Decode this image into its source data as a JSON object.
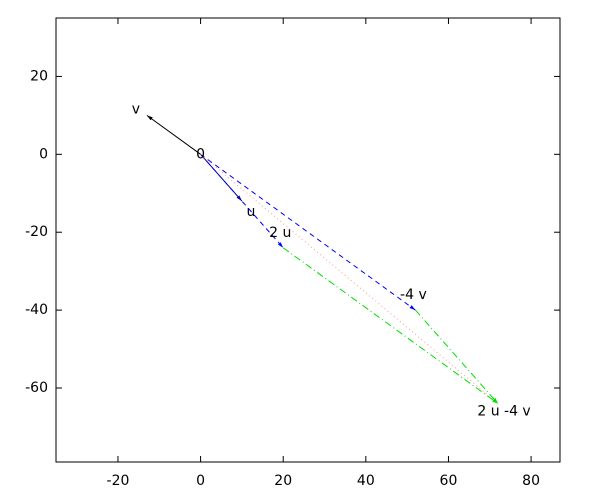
{
  "chart_data": {
    "type": "vector",
    "xlim": [
      -35,
      87
    ],
    "ylim": [
      -79,
      35
    ],
    "xticks": [
      -20,
      0,
      20,
      40,
      60,
      80
    ],
    "yticks": [
      -60,
      -40,
      -20,
      0,
      20
    ],
    "origin_label": "0",
    "vectors": [
      {
        "label": "v",
        "start": [
          0,
          0
        ],
        "end": [
          -13,
          10
        ],
        "color": "#000000",
        "dash": "solid",
        "arrow": true
      },
      {
        "label": "u",
        "start": [
          0,
          0
        ],
        "end": [
          10,
          -12
        ],
        "color": "#000080",
        "dash": "solid",
        "arrow": true
      },
      {
        "label": "2 u",
        "start": [
          0,
          0
        ],
        "end": [
          20,
          -24
        ],
        "color": "#0000ff",
        "dash": "dashed",
        "arrow": true
      },
      {
        "label": "-4 v",
        "start": [
          0,
          0
        ],
        "end": [
          52,
          -40
        ],
        "color": "#0000ff",
        "dash": "dashed",
        "arrow": true
      },
      {
        "label": "2 u -4 v",
        "start": [
          0,
          0
        ],
        "end": [
          72,
          -64
        ],
        "color": "#ff9999",
        "dash": "dotted",
        "arrow": false
      },
      {
        "start": [
          20,
          -24
        ],
        "end": [
          72,
          -64
        ],
        "color": "#00dd00",
        "dash": "dashdot",
        "arrow": true
      },
      {
        "start": [
          52,
          -40
        ],
        "end": [
          72,
          -64
        ],
        "color": "#00dd00",
        "dash": "dashdot",
        "arrow": true
      }
    ]
  }
}
